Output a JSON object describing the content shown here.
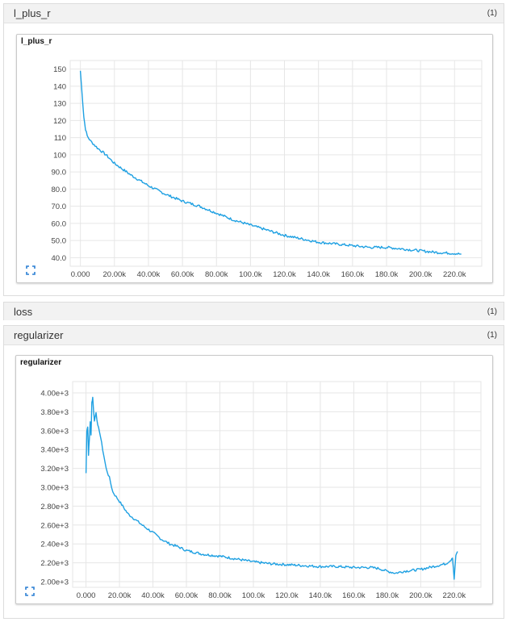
{
  "sections": [
    {
      "title": "l_plus_r",
      "count": "(1)"
    },
    {
      "title": "loss",
      "count": "(1)"
    },
    {
      "title": "regularizer",
      "count": "(1)"
    }
  ],
  "colors": {
    "line": "#1ea0e2",
    "grid": "#e6e6e6",
    "expand": "#2a7fd4"
  },
  "icons": {
    "expand": "expand-corners-icon"
  },
  "chart_data": [
    {
      "type": "line",
      "title": "l_plus_r",
      "xlabel": "",
      "ylabel": "",
      "xlim": [
        -6000,
        236000
      ],
      "ylim": [
        35,
        155
      ],
      "xticks": [
        0,
        20000,
        40000,
        60000,
        80000,
        100000,
        120000,
        140000,
        160000,
        180000,
        200000,
        220000
      ],
      "xtick_labels": [
        "0.000",
        "20.00k",
        "40.00k",
        "60.00k",
        "80.00k",
        "100.0k",
        "120.0k",
        "140.0k",
        "160.0k",
        "180.0k",
        "200.0k",
        "220.0k"
      ],
      "yticks": [
        40,
        50,
        60,
        70,
        80,
        90,
        100,
        110,
        120,
        130,
        140,
        150
      ],
      "ytick_labels": [
        "40.0",
        "50.0",
        "60.0",
        "70.0",
        "80.0",
        "90.0",
        "100",
        "110",
        "120",
        "130",
        "140",
        "150"
      ],
      "grid": true,
      "series": [
        {
          "x": [
            0,
            1000,
            2000,
            3000,
            4000,
            6000,
            8000,
            10000,
            15000,
            20000,
            30000,
            40000,
            50000,
            60000,
            70000,
            80000,
            90000,
            100000,
            110000,
            120000,
            130000,
            140000,
            150000,
            160000,
            170000,
            180000,
            190000,
            200000,
            210000,
            220000,
            224000
          ],
          "y": [
            149,
            135,
            122,
            115,
            111,
            108,
            106,
            104,
            100,
            95,
            88,
            82,
            77,
            73,
            70,
            66,
            62,
            59,
            56,
            53,
            51,
            49,
            48,
            47,
            46,
            46,
            45,
            44,
            43,
            42.5,
            42
          ]
        }
      ]
    },
    {
      "type": "line",
      "title": "regularizer",
      "xlabel": "",
      "ylabel": "",
      "xlim": [
        -8000,
        236000
      ],
      "ylim": [
        1940,
        4120
      ],
      "xticks": [
        0,
        20000,
        40000,
        60000,
        80000,
        100000,
        120000,
        140000,
        160000,
        180000,
        200000,
        220000
      ],
      "xtick_labels": [
        "0.000",
        "20.00k",
        "40.00k",
        "60.00k",
        "80.00k",
        "100.0k",
        "120.0k",
        "140.0k",
        "160.0k",
        "180.0k",
        "200.0k",
        "220.0k"
      ],
      "yticks": [
        2000,
        2200,
        2400,
        2600,
        2800,
        3000,
        3200,
        3400,
        3600,
        3800,
        4000
      ],
      "ytick_labels": [
        "2.00e+3",
        "2.20e+3",
        "2.40e+3",
        "2.60e+3",
        "2.80e+3",
        "3.00e+3",
        "3.20e+3",
        "3.40e+3",
        "3.60e+3",
        "3.80e+3",
        "4.00e+3"
      ],
      "grid": true,
      "series": [
        {
          "x": [
            0,
            500,
            1000,
            1500,
            2000,
            2500,
            3000,
            3500,
            4000,
            5000,
            6000,
            7000,
            8000,
            10000,
            12000,
            14000,
            16000,
            18000,
            20000,
            25000,
            30000,
            35000,
            40000,
            45000,
            50000,
            55000,
            60000,
            70000,
            80000,
            90000,
            100000,
            110000,
            120000,
            130000,
            140000,
            150000,
            160000,
            170000,
            175000,
            180000,
            185000,
            190000,
            200000,
            210000,
            215000,
            218000,
            219000,
            220000,
            221000,
            222000
          ],
          "y": [
            3150,
            3600,
            3640,
            3350,
            3500,
            3700,
            3550,
            3900,
            3950,
            3700,
            3800,
            3650,
            3600,
            3400,
            3200,
            3100,
            2950,
            2900,
            2850,
            2720,
            2650,
            2580,
            2520,
            2450,
            2400,
            2370,
            2330,
            2290,
            2270,
            2240,
            2210,
            2190,
            2180,
            2170,
            2160,
            2160,
            2150,
            2150,
            2140,
            2110,
            2090,
            2110,
            2130,
            2170,
            2190,
            2230,
            2260,
            2030,
            2280,
            2320
          ]
        }
      ]
    }
  ]
}
